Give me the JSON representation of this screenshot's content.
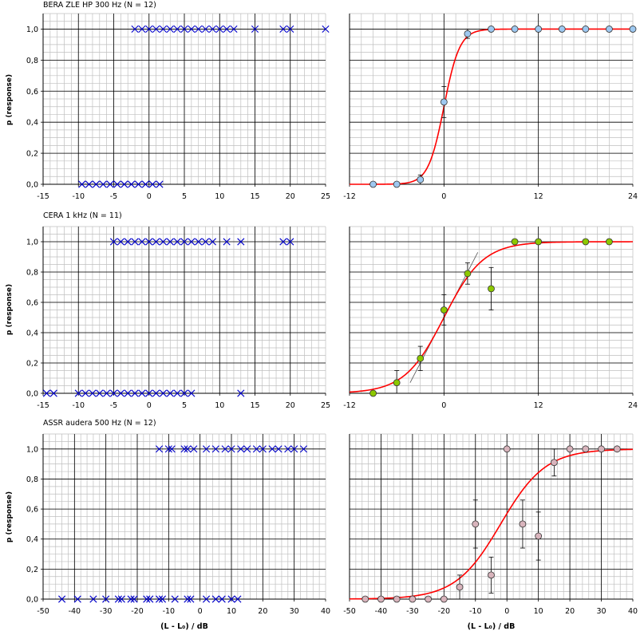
{
  "colors": {
    "raw_marker": "#0000c8",
    "fit_curve": "#ff0000",
    "bera_points": "#9ec8f0",
    "cera_points": "#8cc800",
    "assr_points": "#d8b4bc",
    "grid_major": "#000000",
    "grid_minor": "#bfbfbf"
  },
  "chart_data": [
    {
      "type": "scatter",
      "title": "BERA ZLE HP 300 Hz (N = 12)",
      "ylabel": "p (response)",
      "xlim": [
        -15,
        25
      ],
      "ylim": [
        0,
        1.1
      ],
      "x_ticks": [
        "-15",
        "-10",
        "-5",
        "0",
        "5",
        "10",
        "15",
        "20",
        "25"
      ],
      "y_ticks": [
        "0,0",
        "0,2",
        "0,4",
        "0,6",
        "0,8",
        "1,0"
      ],
      "marker": "x",
      "points_p1": [
        -2,
        -1,
        0,
        1,
        2,
        3,
        4,
        5,
        6,
        7,
        8,
        9,
        10,
        11,
        12,
        15,
        19,
        20,
        25
      ],
      "points_p0": [
        -9.5,
        -8.5,
        -7.5,
        -6.5,
        -5.5,
        -4.5,
        -3.5,
        -2.5,
        -1.5,
        -0.5,
        0.5,
        1.5
      ]
    },
    {
      "type": "line",
      "xlim": [
        -12,
        24
      ],
      "ylim": [
        0,
        1.1
      ],
      "x_ticks": [
        "-12",
        "0",
        "12",
        "24"
      ],
      "fit": {
        "x50": 0.0,
        "slope": 1.0
      },
      "x": [
        -9,
        -6,
        -3,
        0,
        3,
        6,
        9,
        12,
        15,
        18,
        21,
        24
      ],
      "y": [
        0,
        0,
        0.03,
        0.53,
        0.97,
        1.0,
        1.0,
        1.0,
        1.0,
        1.0,
        1.0,
        1.0
      ],
      "err": [
        0,
        0,
        0.03,
        0.1,
        0.03,
        0,
        0,
        0,
        0,
        0,
        0,
        0
      ]
    },
    {
      "type": "scatter",
      "title": "CERA 1 kHz (N = 11)",
      "ylabel": "p (response)",
      "xlim": [
        -15,
        25
      ],
      "ylim": [
        0,
        1.1
      ],
      "x_ticks": [
        "-15",
        "-10",
        "-5",
        "0",
        "5",
        "10",
        "15",
        "20",
        "25"
      ],
      "y_ticks": [
        "0,0",
        "0,2",
        "0,4",
        "0,6",
        "0,8",
        "1,0"
      ],
      "marker": "x",
      "points_p1": [
        -5,
        -4,
        -3,
        -2,
        -1,
        0,
        1,
        2,
        3,
        4,
        5,
        6,
        7,
        8,
        9,
        11,
        13,
        19,
        20
      ],
      "points_p0": [
        -14.5,
        -13.5,
        -10,
        -9,
        -8,
        -7,
        -6,
        -5,
        -4,
        -3,
        -2,
        -1,
        0,
        1,
        2,
        3,
        4,
        5,
        6,
        13
      ]
    },
    {
      "type": "line",
      "xlim": [
        -12,
        24
      ],
      "ylim": [
        0,
        1.1
      ],
      "x_ticks": [
        "-12",
        "0",
        "12",
        "24"
      ],
      "fit": {
        "x50": 0.0,
        "slope": 0.4
      },
      "x": [
        -9,
        -6,
        -3,
        0,
        3,
        6,
        9,
        12,
        18,
        21
      ],
      "y": [
        0,
        0.07,
        0.23,
        0.55,
        0.79,
        0.69,
        1.0,
        1.0,
        1.0,
        1.0
      ],
      "err": [
        0,
        0.08,
        0.08,
        0.1,
        0.07,
        0.14,
        0,
        0,
        0,
        0
      ]
    },
    {
      "type": "scatter",
      "title": "ASSR audera 500 Hz (N = 12)",
      "ylabel": "p (response)",
      "xlabel": "(L - L₀) / dB",
      "xlim": [
        -50,
        40
      ],
      "ylim": [
        0,
        1.1
      ],
      "x_ticks": [
        "-50",
        "-40",
        "-30",
        "-20",
        "-10",
        "0",
        "10",
        "20",
        "30",
        "40"
      ],
      "y_ticks": [
        "0,0",
        "0,2",
        "0,4",
        "0,6",
        "0,8",
        "1,0"
      ],
      "marker": "x",
      "points_p1": [
        -13,
        -10,
        -9,
        -5,
        -4,
        -2,
        2,
        5,
        8,
        10,
        13,
        15,
        18,
        20,
        23,
        25,
        28,
        30,
        33
      ],
      "points_p0": [
        -44,
        -39,
        -34,
        -30,
        -26,
        -25,
        -22,
        -21,
        -17,
        -16,
        -13,
        -12,
        -8,
        -4,
        -3,
        2,
        5,
        7,
        10,
        12
      ]
    },
    {
      "type": "line",
      "xlabel": "(L - L₀) / dB",
      "xlim": [
        -50,
        40
      ],
      "ylim": [
        0,
        1.1
      ],
      "x_ticks": [
        "-50",
        "-40",
        "-30",
        "-20",
        "-10",
        "0",
        "10",
        "20",
        "30",
        "40"
      ],
      "fit": {
        "x50": -2.0,
        "slope": 0.14
      },
      "x": [
        -45,
        -40,
        -35,
        -30,
        -25,
        -20,
        -15,
        -10,
        -5,
        0,
        5,
        10,
        15,
        20,
        25,
        30,
        35
      ],
      "y": [
        0,
        0,
        0,
        0,
        0,
        0,
        0.08,
        0.5,
        0.16,
        1.0,
        0.5,
        0.42,
        0.91,
        1.0,
        1.0,
        1.0,
        1.0
      ],
      "err": [
        0,
        0,
        0,
        0,
        0,
        0,
        0.08,
        0.16,
        0.12,
        0,
        0.16,
        0.16,
        0.09,
        0,
        0,
        0,
        0
      ]
    }
  ]
}
